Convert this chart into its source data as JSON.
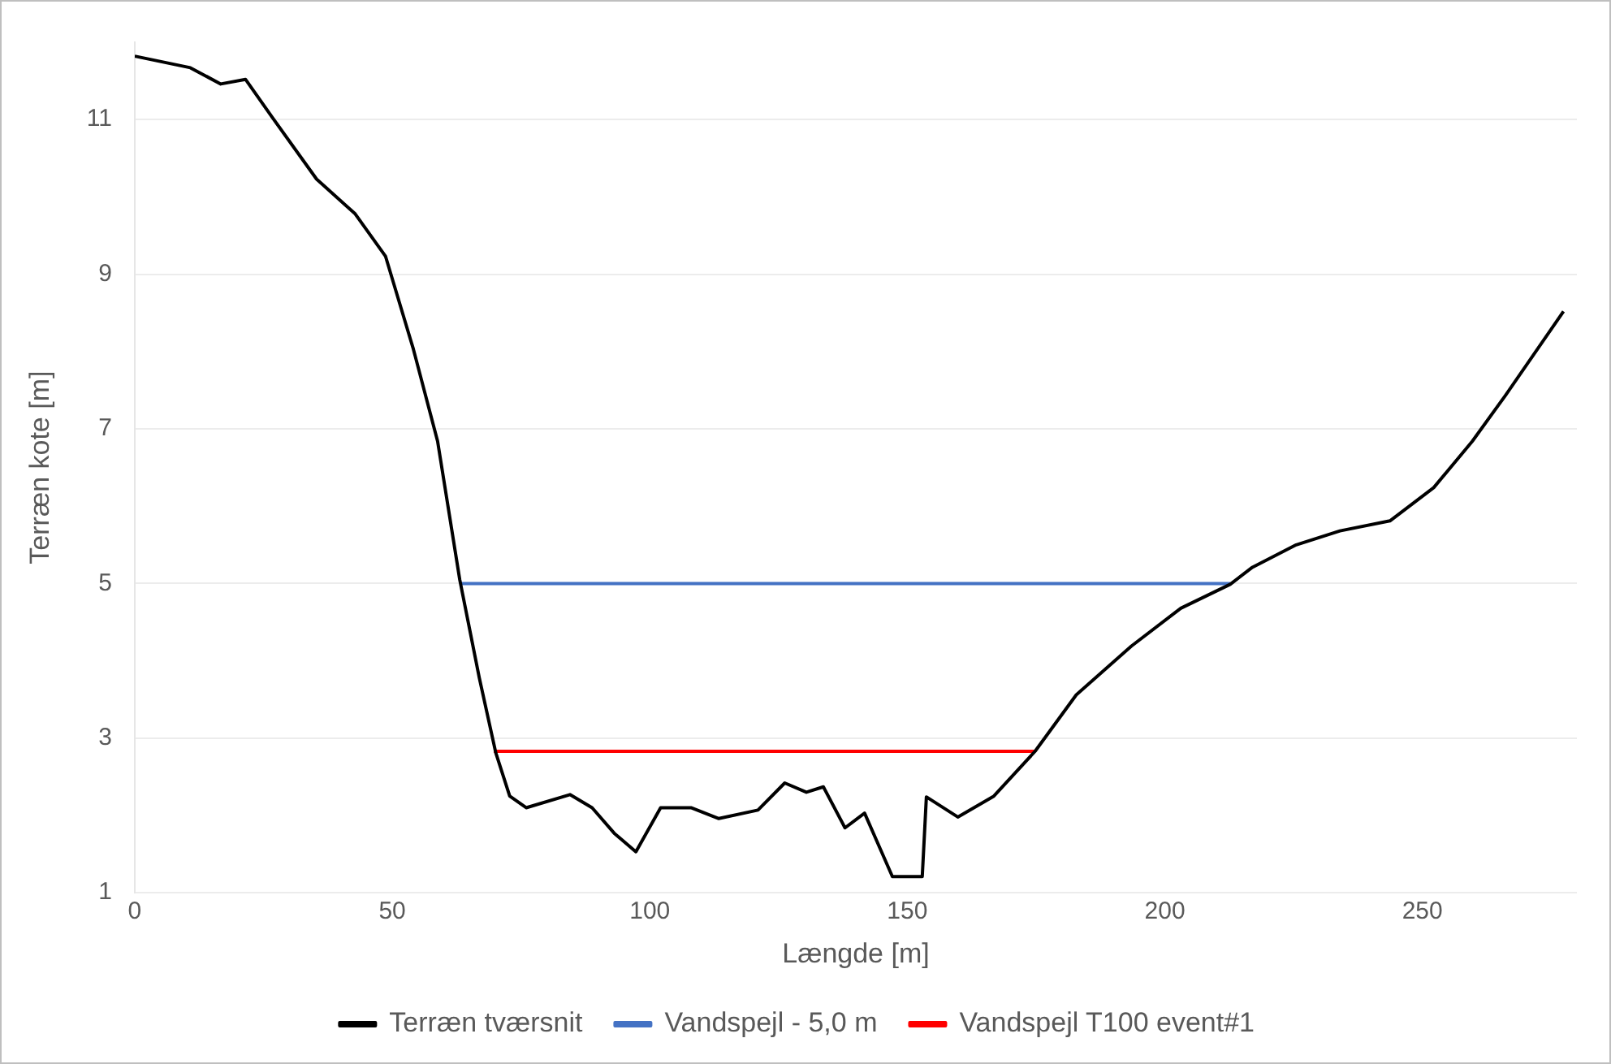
{
  "chart_data": {
    "type": "line",
    "xlabel": "Længde [m]",
    "ylabel": "Terræn kote [m]",
    "xlim": [
      0,
      280
    ],
    "xticks": [
      0,
      50,
      100,
      150,
      200,
      250
    ],
    "ylim": [
      1,
      12
    ],
    "yticks": [
      1,
      3,
      5,
      7,
      9,
      11
    ],
    "grid": "y",
    "legend": "bottom",
    "marker": "none",
    "line_style": "solid",
    "series": [
      {
        "name": "Terræn tværsnit",
        "color": "#000000",
        "x": [
          0,
          10.8,
          16.7,
          21.5,
          26.8,
          35.3,
          42.8,
          48.7,
          54.1,
          58.8,
          63.1,
          66.9,
          70.1,
          72.8,
          76,
          84.5,
          88.8,
          93.1,
          97.3,
          102.1,
          108,
          113.4,
          121,
          126.2,
          130.4,
          133.7,
          137.9,
          141.7,
          147.1,
          152.9,
          153.7,
          159.8,
          166.8,
          174.8,
          182.8,
          193.5,
          203.1,
          212.7,
          217,
          225.5,
          234,
          243.7,
          252.2,
          259.7,
          266.1,
          277.4
        ],
        "values": [
          11.82,
          11.67,
          11.46,
          11.52,
          11.02,
          10.23,
          9.78,
          9.23,
          8.03,
          6.84,
          5.05,
          3.78,
          2.81,
          2.25,
          2.1,
          2.27,
          2.1,
          1.77,
          1.53,
          2.1,
          2.1,
          1.96,
          2.07,
          2.42,
          2.3,
          2.37,
          1.84,
          2.03,
          1.21,
          1.21,
          2.24,
          1.98,
          2.25,
          2.83,
          3.56,
          4.19,
          4.68,
          4.99,
          5.21,
          5.5,
          5.68,
          5.81,
          6.24,
          6.84,
          7.43,
          8.52
        ]
      },
      {
        "name": "Vandspejl - 5,0 m",
        "color": "#4472c4",
        "x": [
          63.1,
          212.7
        ],
        "values": [
          5.0,
          5.0
        ]
      },
      {
        "name": "Vandspejl T100 event#1",
        "color": "#ff0000",
        "x": [
          69.7,
          174.8
        ],
        "values": [
          2.83,
          2.83
        ]
      }
    ]
  }
}
